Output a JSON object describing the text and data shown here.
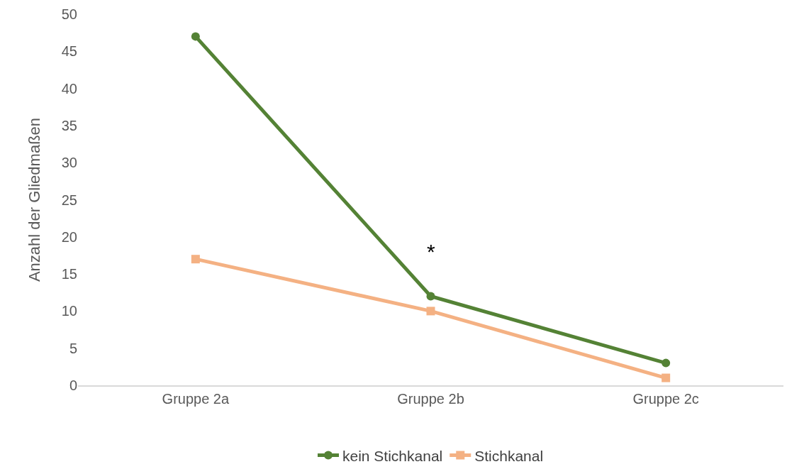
{
  "chart_data": {
    "type": "line",
    "ylabel": "Anzahl der Gliedmaßen",
    "categories": [
      "Gruppe 2a",
      "Gruppe 2b",
      "Gruppe 2c"
    ],
    "series": [
      {
        "name": "kein Stichkanal",
        "color": "#548235",
        "values": [
          47,
          12,
          3
        ],
        "marker": "circle"
      },
      {
        "name": "Stichkanal",
        "color": "#f4b183",
        "values": [
          17,
          10,
          1
        ],
        "marker": "square"
      }
    ],
    "ylim": [
      0,
      50
    ],
    "yticks": [
      0,
      5,
      10,
      15,
      20,
      25,
      30,
      35,
      40,
      45,
      50
    ],
    "grid": false,
    "legend": "bottom",
    "line_style": "solid",
    "annotations": [
      "*"
    ]
  }
}
